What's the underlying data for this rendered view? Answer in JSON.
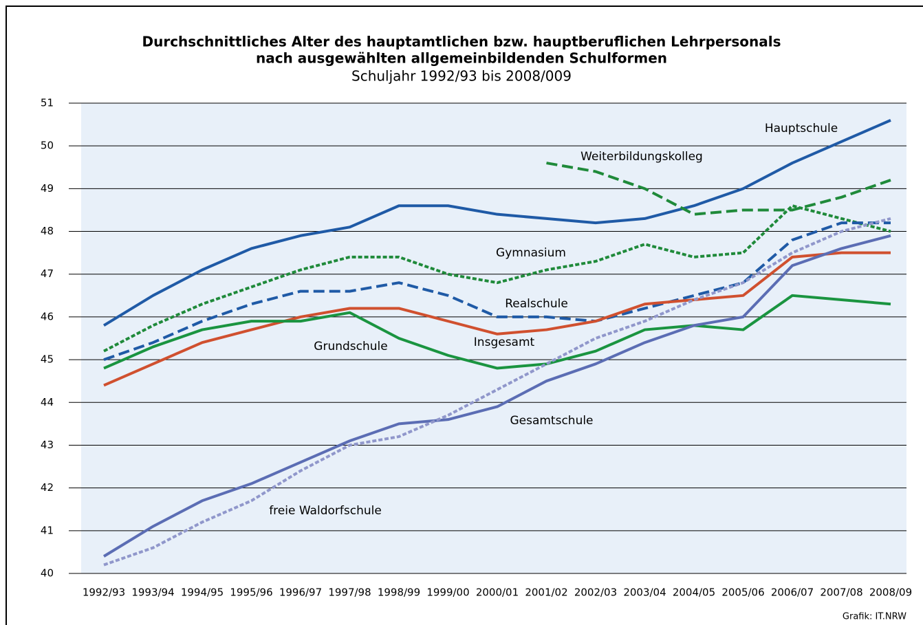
{
  "chart_data": {
    "type": "line",
    "title": [
      "Durchschnittliches Alter des hauptamtlichen bzw. hauptberuflichen Lehrpersonals",
      "nach ausgewählten allgemeinbildenden Schulformen"
    ],
    "subtitle": "Schuljahr 1992/93 bis 2008/009",
    "source": "Grafik: IT.NRW",
    "categories": [
      "1992/93",
      "1993/94",
      "1994/95",
      "1995/96",
      "1996/97",
      "1997/98",
      "1998/99",
      "1999/00",
      "2000/01",
      "2001/02",
      "2002/03",
      "2003/04",
      "2004/05",
      "2005/06",
      "2006/07",
      "2007/08",
      "2008/09"
    ],
    "ylim": [
      40,
      51
    ],
    "yticks": [
      40,
      41,
      42,
      43,
      44,
      45,
      46,
      47,
      48,
      49,
      50,
      51
    ],
    "grid": true,
    "series": [
      {
        "name": "Hauptschule",
        "color": "#1f5aa6",
        "dash": "solid",
        "values": [
          45.8,
          46.5,
          47.1,
          47.6,
          47.9,
          48.1,
          48.6,
          48.6,
          48.4,
          48.3,
          48.2,
          48.3,
          48.6,
          49.0,
          49.6,
          50.1,
          50.6
        ]
      },
      {
        "name": "Weiterbildungskolleg",
        "color": "#1f8a3a",
        "dash": "long",
        "values": [
          null,
          null,
          null,
          null,
          null,
          null,
          null,
          null,
          null,
          49.6,
          49.4,
          49.0,
          48.4,
          48.5,
          48.5,
          48.8,
          49.2
        ]
      },
      {
        "name": "Gymnasium",
        "color": "#1f8a3a",
        "dash": "short",
        "values": [
          45.2,
          45.8,
          46.3,
          46.7,
          47.1,
          47.4,
          47.4,
          47.0,
          46.8,
          47.1,
          47.3,
          47.7,
          47.4,
          47.5,
          48.6,
          48.3,
          48.0
        ]
      },
      {
        "name": "Realschule",
        "color": "#1f5aa6",
        "dash": "long",
        "values": [
          45.0,
          45.4,
          45.9,
          46.3,
          46.6,
          46.6,
          46.8,
          46.5,
          46.0,
          46.0,
          45.9,
          46.2,
          46.5,
          46.8,
          47.8,
          48.2,
          48.2
        ]
      },
      {
        "name": "Insgesamt",
        "color": "#d0502f",
        "dash": "solid",
        "values": [
          44.4,
          44.9,
          45.4,
          45.7,
          46.0,
          46.2,
          46.2,
          45.9,
          45.6,
          45.7,
          45.9,
          46.3,
          46.4,
          46.5,
          47.4,
          47.5,
          47.5
        ]
      },
      {
        "name": "Grundschule",
        "color": "#1a9440",
        "dash": "solid",
        "values": [
          44.8,
          45.3,
          45.7,
          45.9,
          45.9,
          46.1,
          45.5,
          45.1,
          44.8,
          44.9,
          45.2,
          45.7,
          45.8,
          45.7,
          46.5,
          46.4,
          46.3
        ]
      },
      {
        "name": "Gesamtschule",
        "color": "#5b6db4",
        "dash": "solid",
        "values": [
          40.4,
          41.1,
          41.7,
          42.1,
          42.6,
          43.1,
          43.5,
          43.6,
          43.9,
          44.5,
          44.9,
          45.4,
          45.8,
          46.0,
          47.2,
          47.6,
          47.9
        ]
      },
      {
        "name": "freie Waldorfschule",
        "color": "#9097cb",
        "dash": "short",
        "values": [
          40.2,
          40.6,
          41.2,
          41.7,
          42.4,
          43.0,
          43.2,
          43.7,
          44.3,
          44.9,
          45.5,
          45.9,
          46.4,
          46.8,
          47.5,
          48.0,
          48.3
        ]
      }
    ]
  }
}
